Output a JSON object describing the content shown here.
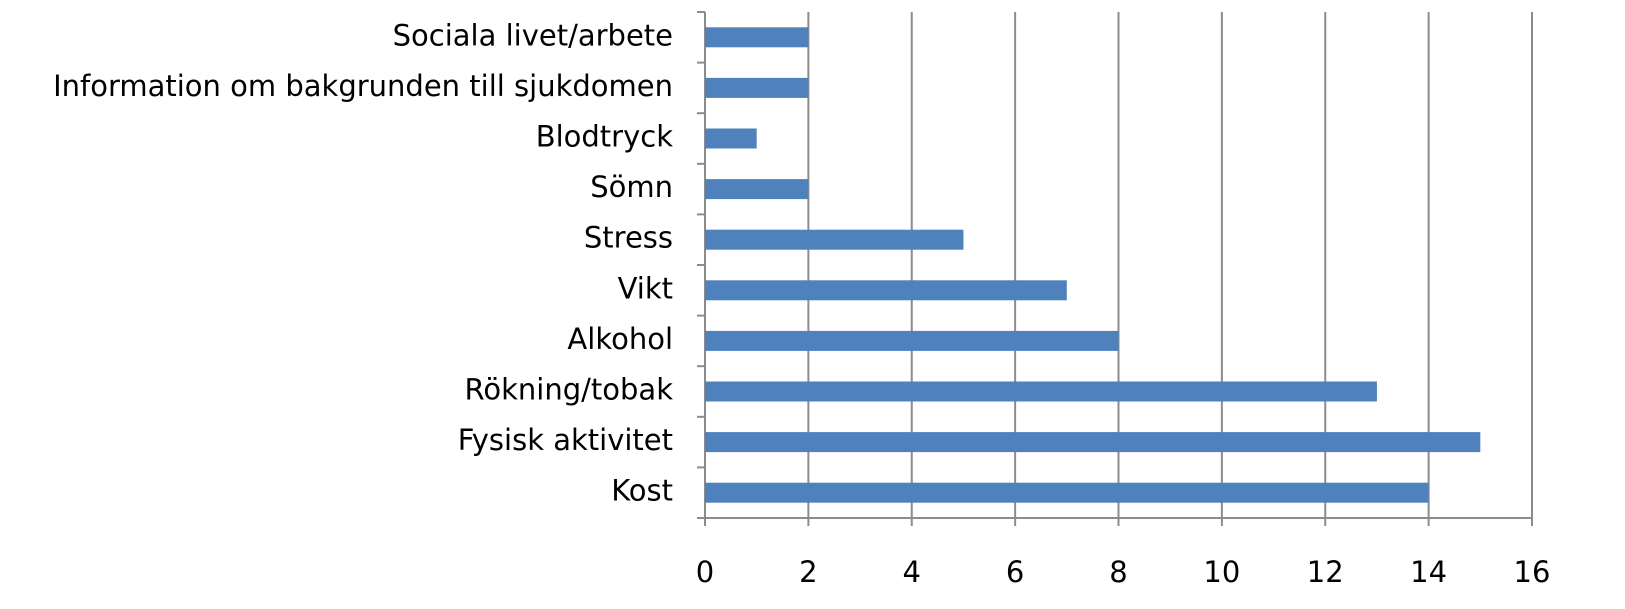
{
  "chart_data": {
    "type": "barh",
    "categories": [
      "Sociala livet/arbete",
      "Information om bakgrunden till sjukdomen",
      "Blodtryck",
      "Sömn",
      "Stress",
      "Vikt",
      "Alkohol",
      "Rökning/tobak",
      "Fysisk aktivitet",
      "Kost"
    ],
    "values": [
      2,
      2,
      1,
      2,
      5,
      7,
      8,
      13,
      15,
      14
    ],
    "color": "#4f81bd",
    "xlim": [
      0,
      16
    ],
    "xticks": [
      0,
      2,
      4,
      6,
      8,
      10,
      12,
      14,
      16
    ],
    "grid": true
  }
}
